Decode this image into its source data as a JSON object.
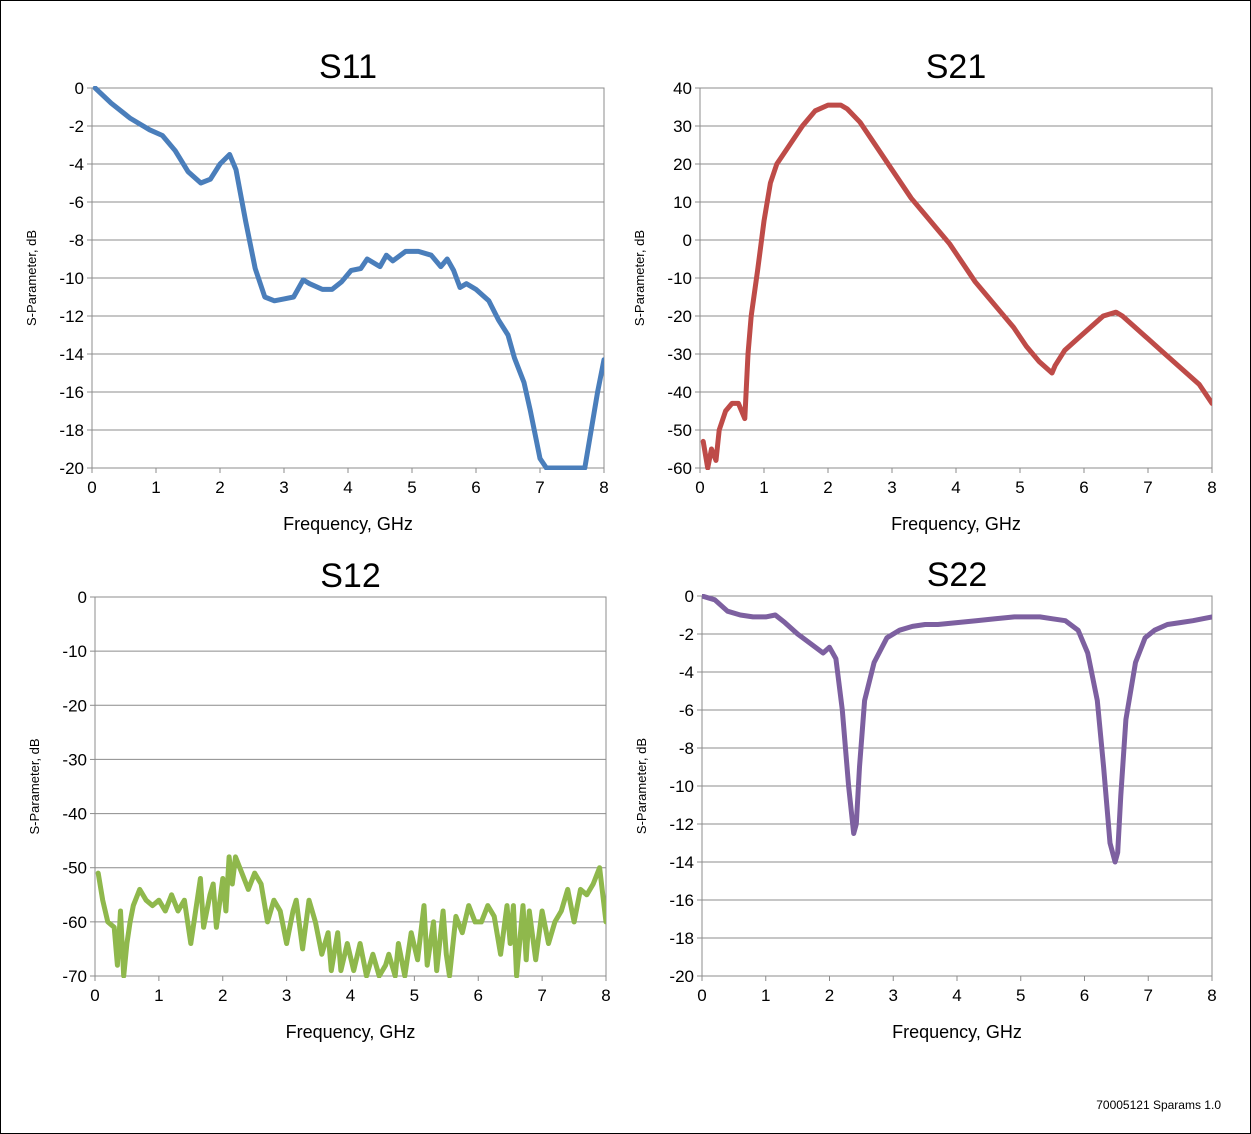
{
  "footer": {
    "code": "70005121 Sparams 1.0"
  },
  "chart_data": [
    {
      "type": "line",
      "title": "S11",
      "xlabel": "Frequency, GHz",
      "ylabel": "S-Parameter, dB",
      "xlim": [
        0,
        8
      ],
      "ylim": [
        -20,
        0
      ],
      "xticks": [
        0,
        1,
        2,
        3,
        4,
        5,
        6,
        7,
        8
      ],
      "yticks": [
        0,
        -2,
        -4,
        -6,
        -8,
        -10,
        -12,
        -14,
        -16,
        -18,
        -20
      ],
      "grid": true,
      "line_color": "#4a7ebb",
      "series": [
        {
          "x": [
            0.05,
            0.3,
            0.6,
            0.8,
            0.9,
            1.1,
            1.3,
            1.5,
            1.7,
            1.85,
            2.0,
            2.15,
            2.25,
            2.4,
            2.55,
            2.7,
            2.85,
            3.0,
            3.15,
            3.3,
            3.4,
            3.6,
            3.75,
            3.9,
            4.05,
            4.2,
            4.3,
            4.5,
            4.6,
            4.7,
            4.9,
            5.1,
            5.3,
            5.45,
            5.55,
            5.65,
            5.75,
            5.85,
            6.0,
            6.2,
            6.35,
            6.5,
            6.6,
            6.75,
            6.85,
            7.0,
            7.1,
            7.5,
            7.7,
            7.9,
            8.0
          ],
          "y": [
            0,
            -0.8,
            -1.6,
            -2.0,
            -2.2,
            -2.5,
            -3.3,
            -4.4,
            -5.0,
            -4.8,
            -4.0,
            -3.5,
            -4.3,
            -7.0,
            -9.5,
            -11.0,
            -11.2,
            -11.1,
            -11.0,
            -10.1,
            -10.3,
            -10.6,
            -10.6,
            -10.2,
            -9.6,
            -9.5,
            -9.0,
            -9.4,
            -8.8,
            -9.1,
            -8.6,
            -8.6,
            -8.8,
            -9.4,
            -9.0,
            -9.6,
            -10.5,
            -10.3,
            -10.6,
            -11.2,
            -12.2,
            -13.0,
            -14.2,
            -15.5,
            -17.0,
            -19.5,
            -20.0,
            -20.0,
            -20.0,
            -16.0,
            -14.3
          ]
        }
      ]
    },
    {
      "type": "line",
      "title": "S21",
      "xlabel": "Frequency, GHz",
      "ylabel": "S-Parameter, dB",
      "xlim": [
        0,
        8
      ],
      "ylim": [
        -60,
        40
      ],
      "xticks": [
        0,
        1,
        2,
        3,
        4,
        5,
        6,
        7,
        8
      ],
      "yticks": [
        40,
        30,
        20,
        10,
        0,
        -10,
        -20,
        -30,
        -40,
        -50,
        -60
      ],
      "grid": true,
      "line_color": "#be4b48",
      "series": [
        {
          "x": [
            0.05,
            0.12,
            0.18,
            0.25,
            0.3,
            0.4,
            0.5,
            0.6,
            0.65,
            0.7,
            0.75,
            0.8,
            0.9,
            1.0,
            1.1,
            1.2,
            1.4,
            1.6,
            1.8,
            2.0,
            2.2,
            2.3,
            2.5,
            2.7,
            2.9,
            3.1,
            3.3,
            3.5,
            3.7,
            3.9,
            4.1,
            4.3,
            4.5,
            4.7,
            4.9,
            5.1,
            5.3,
            5.5,
            5.55,
            5.7,
            5.9,
            6.1,
            6.3,
            6.5,
            6.6,
            6.8,
            7.0,
            7.2,
            7.4,
            7.6,
            7.8,
            8.0
          ],
          "y": [
            -53,
            -60,
            -55,
            -58,
            -50,
            -45,
            -43,
            -43,
            -45,
            -47,
            -30,
            -20,
            -8,
            5,
            15,
            20,
            25,
            30,
            34,
            35.5,
            35.5,
            34.5,
            31,
            26,
            21,
            16,
            11,
            7,
            3,
            -1,
            -6,
            -11,
            -15,
            -19,
            -23,
            -28,
            -32,
            -35,
            -33,
            -29,
            -26,
            -23,
            -20,
            -19,
            -20,
            -23,
            -26,
            -29,
            -32,
            -35,
            -38,
            -43
          ]
        }
      ]
    },
    {
      "type": "line",
      "title": "S12",
      "xlabel": "Frequency, GHz",
      "ylabel": "S-Parameter, dB",
      "xlim": [
        0,
        8
      ],
      "ylim": [
        -70,
        0
      ],
      "xticks": [
        0,
        1,
        2,
        3,
        4,
        5,
        6,
        7,
        8
      ],
      "yticks": [
        0,
        -10,
        -20,
        -30,
        -40,
        -50,
        -60,
        -70
      ],
      "grid": true,
      "line_color": "#8fb84c",
      "series": [
        {
          "x": [
            0.05,
            0.12,
            0.2,
            0.3,
            0.35,
            0.4,
            0.45,
            0.5,
            0.55,
            0.6,
            0.7,
            0.8,
            0.9,
            1.0,
            1.1,
            1.2,
            1.3,
            1.4,
            1.5,
            1.6,
            1.65,
            1.7,
            1.8,
            1.85,
            1.9,
            2.0,
            2.05,
            2.1,
            2.15,
            2.2,
            2.3,
            2.4,
            2.5,
            2.6,
            2.7,
            2.8,
            2.9,
            3.0,
            3.1,
            3.15,
            3.25,
            3.35,
            3.45,
            3.55,
            3.65,
            3.7,
            3.8,
            3.85,
            3.95,
            4.05,
            4.15,
            4.25,
            4.35,
            4.45,
            4.55,
            4.6,
            4.7,
            4.75,
            4.85,
            4.95,
            5.05,
            5.15,
            5.2,
            5.3,
            5.35,
            5.45,
            5.5,
            5.55,
            5.65,
            5.75,
            5.85,
            5.95,
            6.05,
            6.15,
            6.25,
            6.35,
            6.45,
            6.5,
            6.55,
            6.6,
            6.7,
            6.75,
            6.8,
            6.9,
            7.0,
            7.1,
            7.2,
            7.3,
            7.4,
            7.5,
            7.6,
            7.7,
            7.8,
            7.9,
            8.0
          ],
          "y": [
            -51,
            -56,
            -60,
            -61,
            -68,
            -58,
            -70,
            -64,
            -60,
            -57,
            -54,
            -56,
            -57,
            -56,
            -58,
            -55,
            -58,
            -56,
            -64,
            -56,
            -52,
            -61,
            -55,
            -53,
            -61,
            -52,
            -58,
            -48,
            -53,
            -48,
            -51,
            -54,
            -51,
            -53,
            -60,
            -56,
            -58,
            -64,
            -58,
            -56,
            -65,
            -56,
            -60,
            -66,
            -62,
            -69,
            -62,
            -69,
            -64,
            -69,
            -64,
            -70,
            -66,
            -70,
            -68,
            -66,
            -70,
            -64,
            -70,
            -62,
            -67,
            -57,
            -68,
            -60,
            -69,
            -58,
            -66,
            -70,
            -59,
            -62,
            -57,
            -60,
            -60,
            -57,
            -59,
            -66,
            -57,
            -64,
            -57,
            -70,
            -57,
            -67,
            -58,
            -67,
            -58,
            -64,
            -60,
            -58,
            -54,
            -60,
            -54,
            -55,
            -53,
            -50,
            -60
          ]
        }
      ]
    },
    {
      "type": "line",
      "title": "S22",
      "xlabel": "Frequency, GHz",
      "ylabel": "S-Parameter, dB",
      "xlim": [
        0,
        8
      ],
      "ylim": [
        -20,
        0
      ],
      "xticks": [
        0,
        1,
        2,
        3,
        4,
        5,
        6,
        7,
        8
      ],
      "yticks": [
        0,
        -2,
        -4,
        -6,
        -8,
        -10,
        -12,
        -14,
        -16,
        -18,
        -20
      ],
      "grid": true,
      "line_color": "#7d60a0",
      "series": [
        {
          "x": [
            0.0,
            0.2,
            0.4,
            0.6,
            0.8,
            1.0,
            1.15,
            1.3,
            1.5,
            1.7,
            1.9,
            2.0,
            2.1,
            2.2,
            2.3,
            2.38,
            2.42,
            2.47,
            2.55,
            2.7,
            2.9,
            3.1,
            3.3,
            3.5,
            3.7,
            4.0,
            4.3,
            4.6,
            4.9,
            5.1,
            5.3,
            5.5,
            5.7,
            5.9,
            6.05,
            6.2,
            6.3,
            6.4,
            6.48,
            6.52,
            6.57,
            6.65,
            6.8,
            6.95,
            7.1,
            7.3,
            7.5,
            7.7,
            7.85,
            8.0
          ],
          "y": [
            0,
            -0.2,
            -0.8,
            -1.0,
            -1.1,
            -1.1,
            -1.0,
            -1.4,
            -2.0,
            -2.5,
            -3.0,
            -2.7,
            -3.3,
            -6.0,
            -10.0,
            -12.5,
            -12.0,
            -9.0,
            -5.5,
            -3.5,
            -2.2,
            -1.8,
            -1.6,
            -1.5,
            -1.5,
            -1.4,
            -1.3,
            -1.2,
            -1.1,
            -1.1,
            -1.1,
            -1.2,
            -1.3,
            -1.8,
            -3.0,
            -5.5,
            -9.0,
            -13.0,
            -14.0,
            -13.5,
            -10.5,
            -6.5,
            -3.5,
            -2.2,
            -1.8,
            -1.5,
            -1.4,
            -1.3,
            -1.2,
            -1.1
          ]
        }
      ]
    }
  ]
}
